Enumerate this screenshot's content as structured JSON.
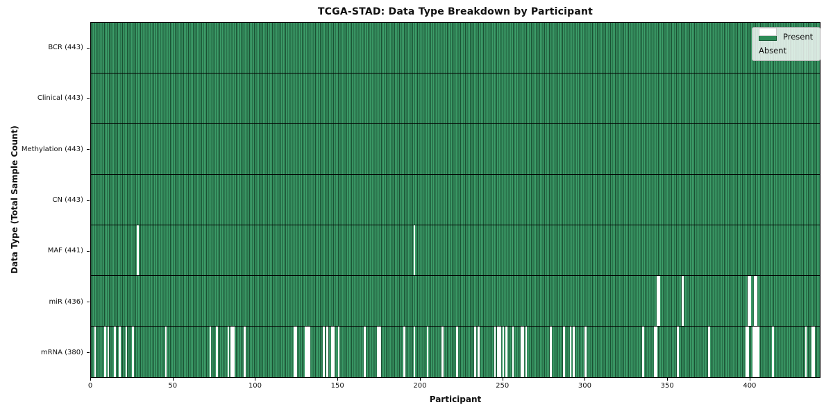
{
  "title": "TCGA-STAD: Data Type Breakdown by Participant",
  "axes": {
    "xlabel": "Participant",
    "ylabel": "Data Type (Total Sample Count)"
  },
  "legend": {
    "present_label": "Present",
    "absent_label": "Absent",
    "position": "upper right"
  },
  "colors": {
    "present": "#2e8b57",
    "absent": "#ffffff",
    "bar_edge": "#0c2516",
    "plot_border": "#000000",
    "legend_bg": "rgba(255,255,255,0.8)"
  },
  "chart_data": {
    "type": "heatmap",
    "title": "TCGA-STAD: Data Type Breakdown by Participant",
    "xlabel": "Participant",
    "ylabel": "Data Type (Total Sample Count)",
    "legend": [
      "Present",
      "Absent"
    ],
    "legend_position": "upper right",
    "grid": false,
    "n_participants": 443,
    "x_range": [
      0,
      443
    ],
    "x_ticks": [
      0,
      50,
      100,
      150,
      200,
      250,
      300,
      350,
      400
    ],
    "rows": [
      {
        "label": "BCR (443)",
        "data_type": "BCR",
        "present_count": 443,
        "absent": []
      },
      {
        "label": "Clinical (443)",
        "data_type": "Clinical",
        "present_count": 443,
        "absent": []
      },
      {
        "label": "Methylation (443)",
        "data_type": "Methylation",
        "present_count": 443,
        "absent": []
      },
      {
        "label": "CN (443)",
        "data_type": "CN",
        "present_count": 443,
        "absent": []
      },
      {
        "label": "MAF (441)",
        "data_type": "MAF",
        "present_count": 441,
        "absent": [
          28,
          196
        ]
      },
      {
        "label": "miR (436)",
        "data_type": "miR",
        "present_count": 436,
        "absent": [
          344,
          345,
          359,
          399,
          400,
          403,
          404
        ]
      },
      {
        "label": "mRNA (380)",
        "data_type": "mRNA",
        "present_count": 380,
        "absent": [
          2,
          8,
          10,
          14,
          17,
          21,
          25,
          45,
          72,
          76,
          83,
          85,
          86,
          93,
          123,
          124,
          130,
          131,
          132,
          141,
          143,
          146,
          147,
          150,
          166,
          174,
          175,
          190,
          196,
          204,
          213,
          222,
          233,
          235,
          245,
          247,
          248,
          250,
          252,
          256,
          261,
          262,
          264,
          279,
          287,
          291,
          293,
          300,
          335,
          342,
          343,
          356,
          375,
          398,
          399,
          402,
          403,
          404,
          405,
          414,
          434,
          438,
          439
        ]
      }
    ]
  }
}
